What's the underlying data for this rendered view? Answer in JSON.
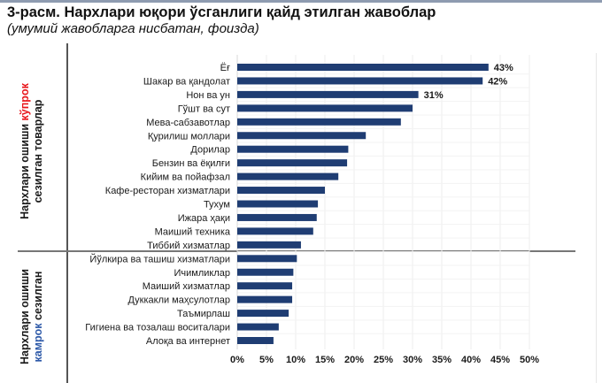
{
  "header": {
    "title": "3-расм. Нархлари юқори ўсганлиги қайд этилган жавоблар",
    "subtitle": "(умумий жавобларга нисбатан, фоизда)"
  },
  "groups": {
    "high": {
      "prefix": "Нархлари ошиши ",
      "highlight": "кўпрок",
      "line2": "сезилган товарлар"
    },
    "low": {
      "line1": "Нархлари ошиши",
      "highlight": "камрок",
      "suffix": " сезилган"
    }
  },
  "colors": {
    "bar": "#1f3d73",
    "grid": "#ececec",
    "high_highlight": "#e8151a",
    "low_highlight": "#2d59a8"
  },
  "chart_data": {
    "type": "bar",
    "orientation": "horizontal",
    "title": "3-расм. Нархлари юқори ўсганлиги қайд этилган жавоблар",
    "subtitle": "(умумий жавобларга нисбатан, фоизда)",
    "xlabel": "",
    "ylabel": "",
    "xlim": [
      0,
      50
    ],
    "grid": true,
    "categories": [
      "Ёғ",
      "Шакар ва қандолат",
      "Нон ва ун",
      "Гўшт ва сут",
      "Мева-сабзавотлар",
      "Қурилиш моллари",
      "Дорилар",
      "Бензин ва ёқилғи",
      "Кийим ва пойафзал",
      "Кафе-ресторан хизматлари",
      "Тухум",
      "Ижара ҳақи",
      "Маиший техника",
      "Тиббий хизматлар",
      "Йўлкира ва ташиш хизматлари",
      "Ичимликлар",
      "Маиший хизматлар",
      "Дуккакли маҳсулотлар",
      "Таъмирлаш",
      "Гигиена ва тозалаш воситалари",
      "Алоқа ва интернет"
    ],
    "values": [
      43,
      42,
      31,
      30,
      28,
      22,
      19,
      18.8,
      17.3,
      15,
      13.8,
      13.6,
      13,
      10.9,
      10.2,
      9.6,
      9.4,
      9.4,
      8.8,
      7.1,
      6.2
    ],
    "data_labels": [
      "43%",
      "42%",
      "31%",
      "",
      "",
      "",
      "",
      "",
      "",
      "",
      "",
      "",
      "",
      "",
      "",
      "",
      "",
      "",
      "",
      "",
      ""
    ],
    "ticks": [
      0,
      5,
      10,
      15,
      20,
      25,
      30,
      35,
      40,
      45,
      50
    ],
    "tick_labels": [
      "0%",
      "5%",
      "10%",
      "15%",
      "20%",
      "25%",
      "30%",
      "35%",
      "40%",
      "45%",
      "50%"
    ],
    "group_split_after_index": 13
  }
}
